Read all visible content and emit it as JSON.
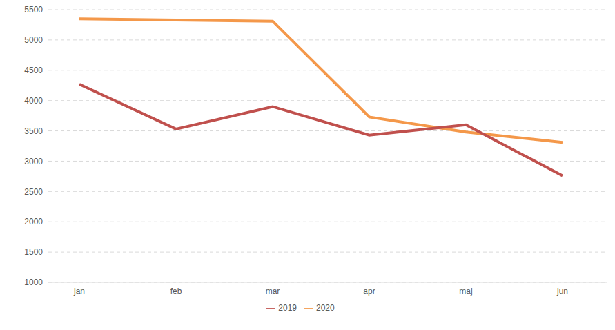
{
  "chart_data": {
    "type": "line",
    "categories": [
      "jan",
      "feb",
      "mar",
      "apr",
      "maj",
      "jun"
    ],
    "series": [
      {
        "name": "2020",
        "color": "#f4984a",
        "values": [
          5350,
          5330,
          5310,
          3730,
          3480,
          3310
        ]
      },
      {
        "name": "2019",
        "color": "#c0504d",
        "values": [
          4270,
          3530,
          3900,
          3430,
          3600,
          2760
        ]
      }
    ],
    "ylim": [
      1000,
      5500
    ],
    "yticks": [
      1000,
      1500,
      2000,
      2500,
      3000,
      3500,
      4000,
      4500,
      5000,
      5500
    ],
    "grid": true,
    "legend": "bottom"
  }
}
